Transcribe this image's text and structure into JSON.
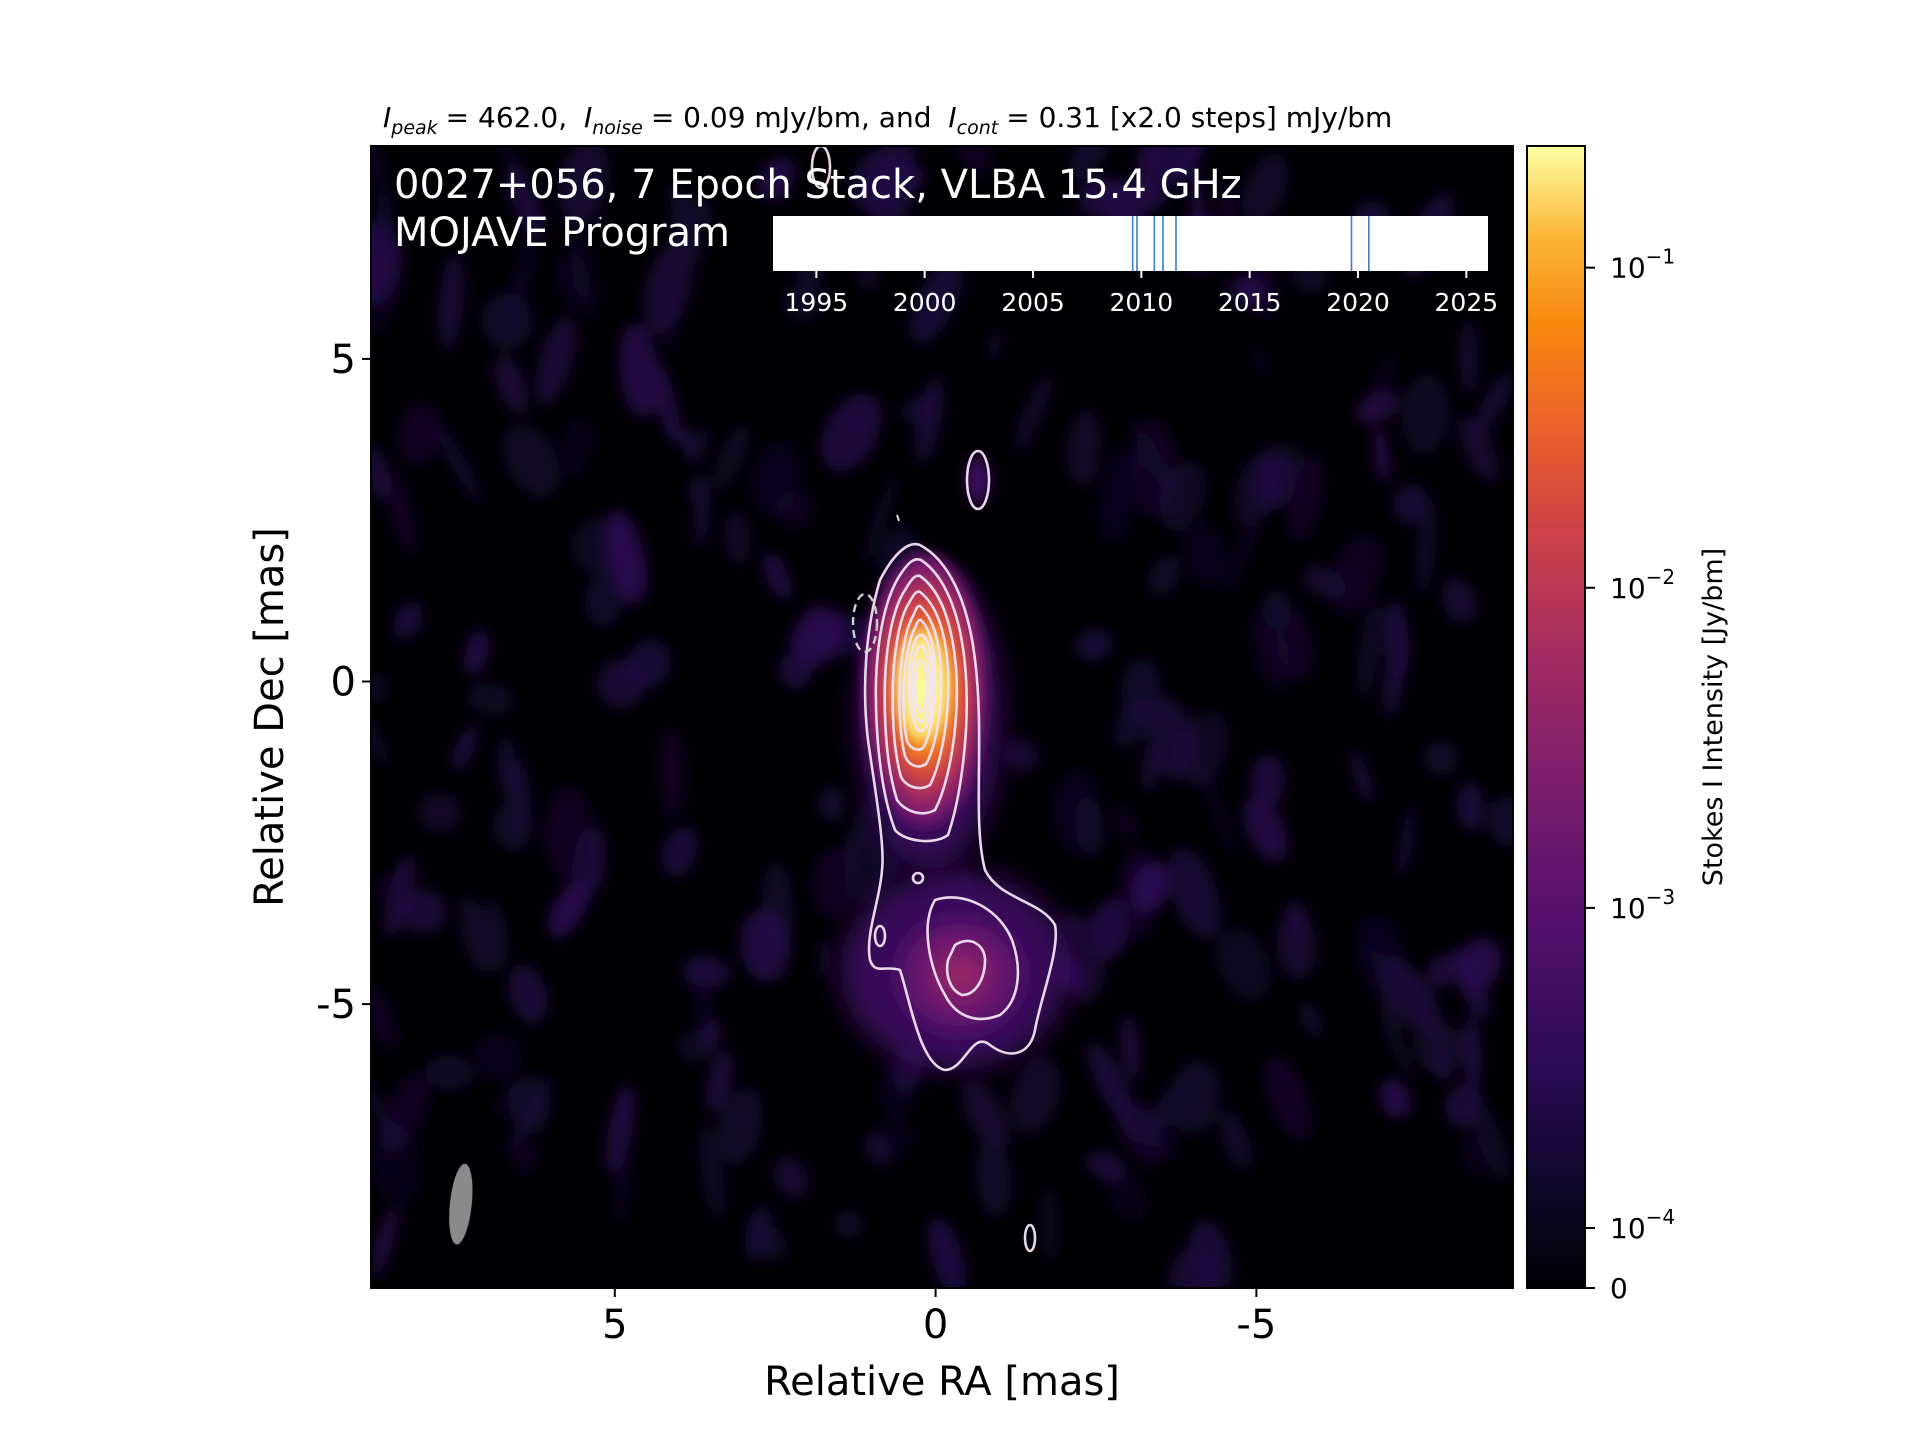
{
  "chart_data": {
    "type": "heatmap",
    "title": {
      "peak_symbol": "I",
      "peak_sub": "peak",
      "peak_value": "= 462.0,",
      "noise_symbol": "I",
      "noise_sub": "noise",
      "noise_value": "= 0.09 mJy/bm, and",
      "cont_symbol": "I",
      "cont_sub": "cont",
      "cont_value": "= 0.31 [x2.0 steps] mJy/bm"
    },
    "source_label": "0027+056, 7 Epoch Stack, VLBA 15.4 GHz",
    "program_label": "MOJAVE Program",
    "xlabel": "Relative RA [mas]",
    "ylabel": "Relative Dec [mas]",
    "xlim": [
      8.8,
      -9.0
    ],
    "ylim": [
      -9.4,
      8.3
    ],
    "xticks": [
      {
        "value": 5,
        "label": "5"
      },
      {
        "value": 0,
        "label": "0"
      },
      {
        "value": -5,
        "label": "-5"
      }
    ],
    "yticks": [
      {
        "value": 5,
        "label": "5"
      },
      {
        "value": 0,
        "label": "0"
      },
      {
        "value": -5,
        "label": "-5"
      }
    ],
    "colormap": "inferno",
    "colorbar": {
      "label": "Stokes I Intensity [Jy/bm]",
      "scale": "log",
      "ticks": [
        {
          "value": 0.1,
          "base": "10",
          "exp": "−1"
        },
        {
          "value": 0.01,
          "base": "10",
          "exp": "−2"
        },
        {
          "value": 0.001,
          "base": "10",
          "exp": "−3"
        },
        {
          "value": 0.0001,
          "base": "10",
          "exp": "−4"
        },
        {
          "value": 0,
          "base": "0",
          "exp": ""
        }
      ]
    },
    "beam": {
      "ra": 7.4,
      "dec": -8.1,
      "major_mas": 1.2,
      "minor_mas": 0.55
    },
    "contour_levels_mJy": [
      0.31,
      0.62,
      1.24,
      2.48,
      4.96,
      9.92,
      19.84,
      39.68,
      79.36,
      158.72,
      317.44
    ],
    "epoch_timeline": {
      "range": [
        1993,
        2026
      ],
      "ticks": [
        {
          "year": 1995,
          "label": "1995"
        },
        {
          "year": 2000,
          "label": "2000"
        },
        {
          "year": 2005,
          "label": "2005"
        },
        {
          "year": 2010,
          "label": "2010"
        },
        {
          "year": 2015,
          "label": "2015"
        },
        {
          "year": 2020,
          "label": "2020"
        },
        {
          "year": 2025,
          "label": "2025"
        }
      ],
      "epochs": [
        2009.6,
        2009.8,
        2010.6,
        2011.0,
        2011.6,
        2019.7,
        2020.5
      ]
    }
  }
}
